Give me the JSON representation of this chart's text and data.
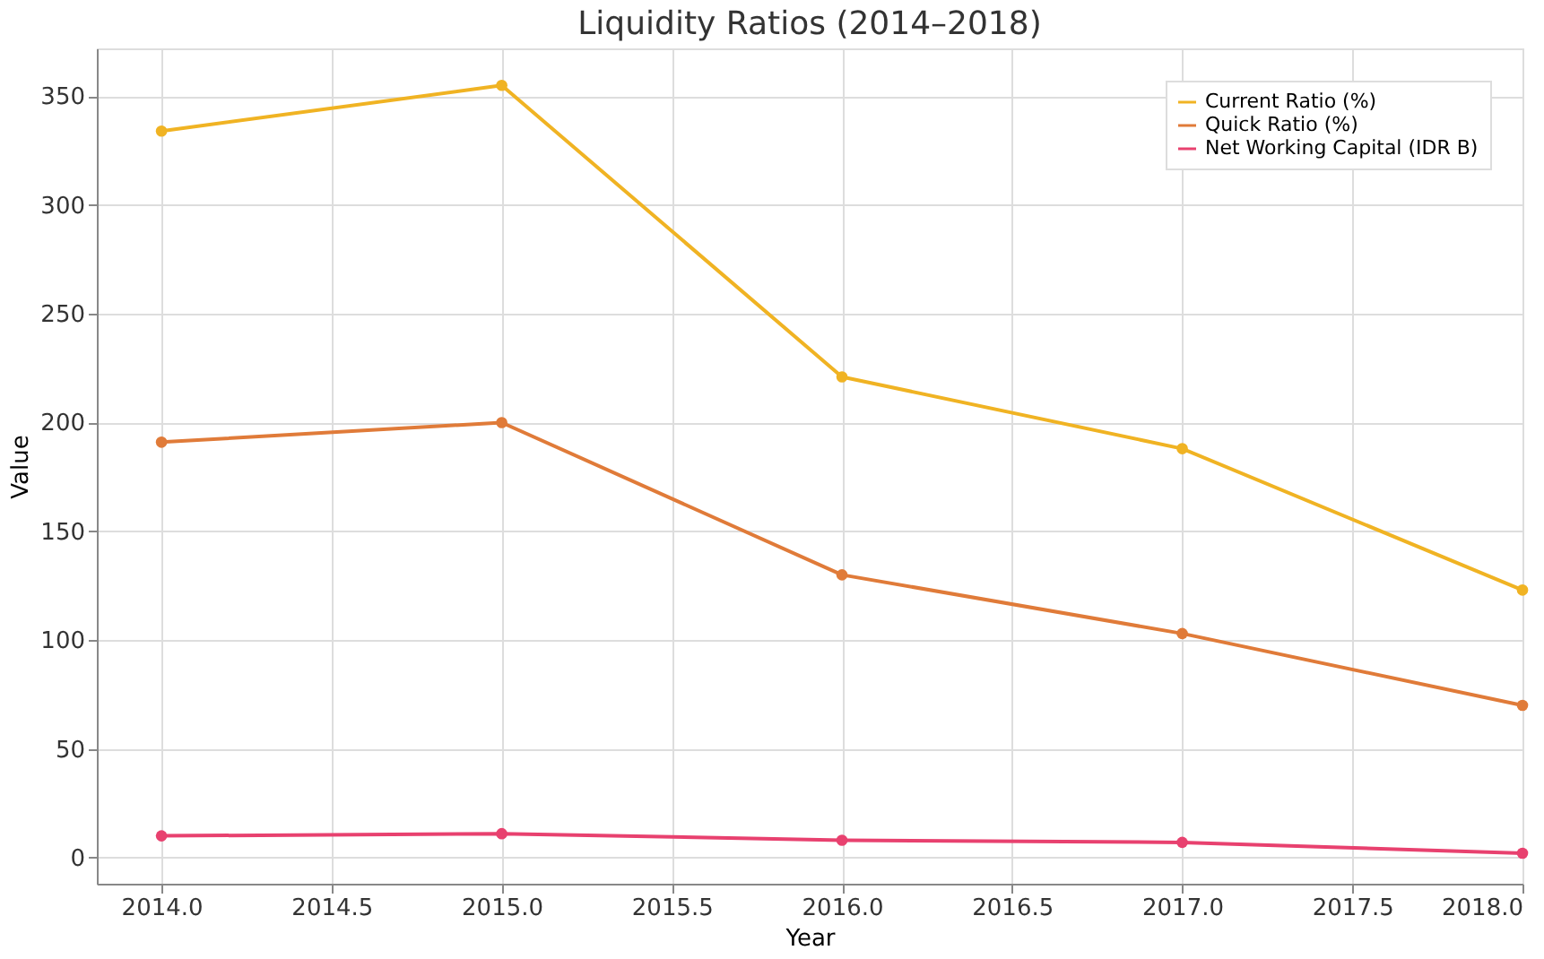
{
  "chart_data": {
    "type": "line",
    "title": "Liquidity Ratios (2014–2018)",
    "xlabel": "Year",
    "ylabel": "Value",
    "x": [
      2014,
      2015,
      2016,
      2017,
      2018
    ],
    "series": [
      {
        "name": "Current Ratio (%)",
        "color": "#f0b323",
        "values": [
          334,
          355,
          221,
          188,
          123
        ]
      },
      {
        "name": "Quick Ratio (%)",
        "color": "#e07b39",
        "values": [
          191,
          200,
          130,
          103,
          70
        ]
      },
      {
        "name": "Net Working Capital (IDR B)",
        "color": "#e8416f",
        "values": [
          10,
          11,
          8,
          7,
          2
        ]
      }
    ],
    "xlim": [
      2013.81,
      2018.0
    ],
    "xticks": [
      {
        "value": 2014,
        "label": "2014.0"
      },
      {
        "value": 2014.5,
        "label": "2014.5"
      },
      {
        "value": 2015,
        "label": "2015.0"
      },
      {
        "value": 2015.5,
        "label": "2015.5"
      },
      {
        "value": 2016,
        "label": "2016.0"
      },
      {
        "value": 2016.5,
        "label": "2016.5"
      },
      {
        "value": 2017,
        "label": "2017.0"
      },
      {
        "value": 2017.5,
        "label": "2017.5"
      },
      {
        "value": 2018,
        "label": "2018.0"
      }
    ],
    "ylim": [
      -12,
      372
    ],
    "yticks": [
      0,
      50,
      100,
      150,
      200,
      250,
      300,
      350
    ],
    "grid": true,
    "legend": "top right",
    "marker": "circle",
    "line_style": "solid"
  }
}
